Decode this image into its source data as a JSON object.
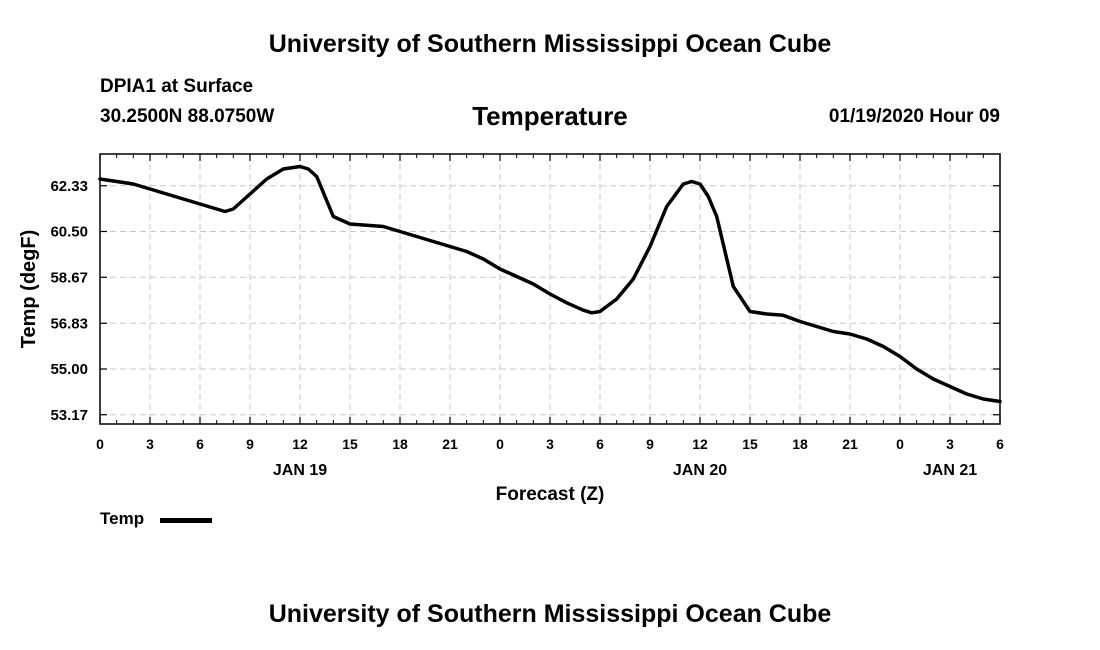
{
  "header": {
    "title": "University of Southern Mississippi Ocean Cube",
    "station": "DPIA1 at Surface",
    "coordinates": "30.2500N 88.0750W",
    "valid_time": "01/19/2020 Hour 09"
  },
  "footer": {
    "title": "University of Southern Mississippi Ocean Cube"
  },
  "chart_data": {
    "type": "line",
    "title": "Temperature",
    "xlabel": "Forecast (Z)",
    "ylabel": "Temp (degF)",
    "xlim": [
      0,
      54
    ],
    "ylim": [
      52.8,
      63.6
    ],
    "y_ticks": [
      "62.33",
      "60.50",
      "58.67",
      "56.83",
      "55.00",
      "53.17"
    ],
    "x_ticks": [
      "0",
      "3",
      "6",
      "9",
      "12",
      "15",
      "18",
      "21",
      "0",
      "3",
      "6",
      "9",
      "12",
      "15",
      "18",
      "21",
      "0",
      "3",
      "6"
    ],
    "date_labels": [
      {
        "label": "JAN 19",
        "at_hour": 12
      },
      {
        "label": "JAN 20",
        "at_hour": 36
      },
      {
        "label": "JAN 21",
        "at_hour": 51
      }
    ],
    "grid": true,
    "legend_position": "bottom-left",
    "series": [
      {
        "name": "Temp",
        "color": "#000000",
        "x": [
          0,
          1,
          2,
          3,
          4,
          5,
          6,
          7,
          7.5,
          8,
          9,
          10,
          11,
          12,
          12.5,
          13,
          14,
          15,
          16,
          17,
          18,
          19,
          20,
          21,
          22,
          23,
          24,
          25,
          26,
          27,
          28,
          29,
          29.5,
          30,
          31,
          32,
          33,
          34,
          35,
          35.5,
          36,
          36.5,
          37,
          38,
          39,
          40,
          41,
          42,
          43,
          44,
          45,
          46,
          47,
          48,
          49,
          50,
          51,
          52,
          53,
          54
        ],
        "values": [
          62.6,
          62.5,
          62.4,
          62.2,
          62.0,
          61.8,
          61.6,
          61.4,
          61.3,
          61.4,
          62.0,
          62.6,
          63.0,
          63.1,
          63.0,
          62.7,
          61.1,
          60.8,
          60.75,
          60.7,
          60.5,
          60.3,
          60.1,
          59.9,
          59.7,
          59.4,
          59.0,
          58.7,
          58.4,
          58.0,
          57.65,
          57.35,
          57.25,
          57.3,
          57.8,
          58.6,
          59.9,
          61.5,
          62.4,
          62.5,
          62.4,
          61.9,
          61.1,
          58.3,
          57.3,
          57.2,
          57.15,
          56.9,
          56.7,
          56.5,
          56.4,
          56.2,
          55.9,
          55.5,
          55.0,
          54.6,
          54.3,
          54.0,
          53.8,
          53.7
        ]
      }
    ]
  }
}
